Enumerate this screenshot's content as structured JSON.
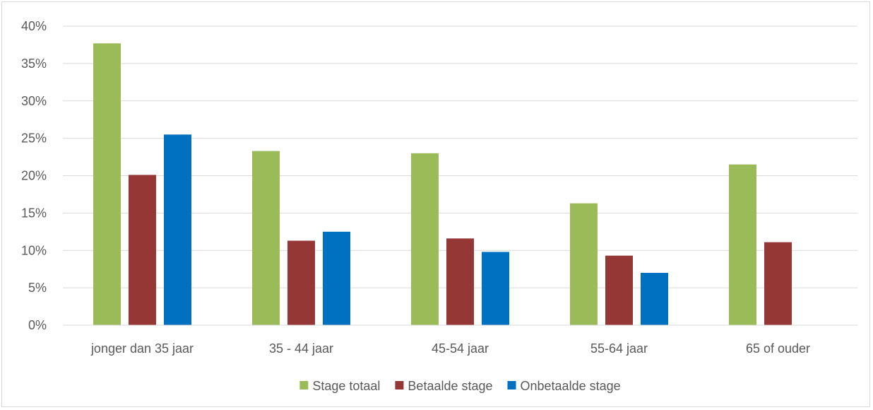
{
  "chart_data": {
    "type": "bar",
    "title": "",
    "xlabel": "",
    "ylabel": "",
    "ylim": [
      0,
      40
    ],
    "yticks": [
      "0%",
      "5%",
      "10%",
      "15%",
      "20%",
      "25%",
      "30%",
      "35%",
      "40%"
    ],
    "grid": true,
    "legend_position": "bottom",
    "categories": [
      "jonger dan 35 jaar",
      "35 - 44 jaar",
      "45-54 jaar",
      "55-64 jaar",
      "65 of ouder"
    ],
    "series": [
      {
        "name": "Stage totaal",
        "color": "#9bbb59",
        "values": [
          37.7,
          23.3,
          23.0,
          16.3,
          21.5
        ]
      },
      {
        "name": "Betaalde stage",
        "color": "#953735",
        "values": [
          20.1,
          11.3,
          11.6,
          9.3,
          11.1
        ]
      },
      {
        "name": "Onbetaalde stage",
        "color": "#0070c0",
        "values": [
          25.5,
          12.5,
          9.8,
          7.0,
          null
        ]
      }
    ]
  }
}
